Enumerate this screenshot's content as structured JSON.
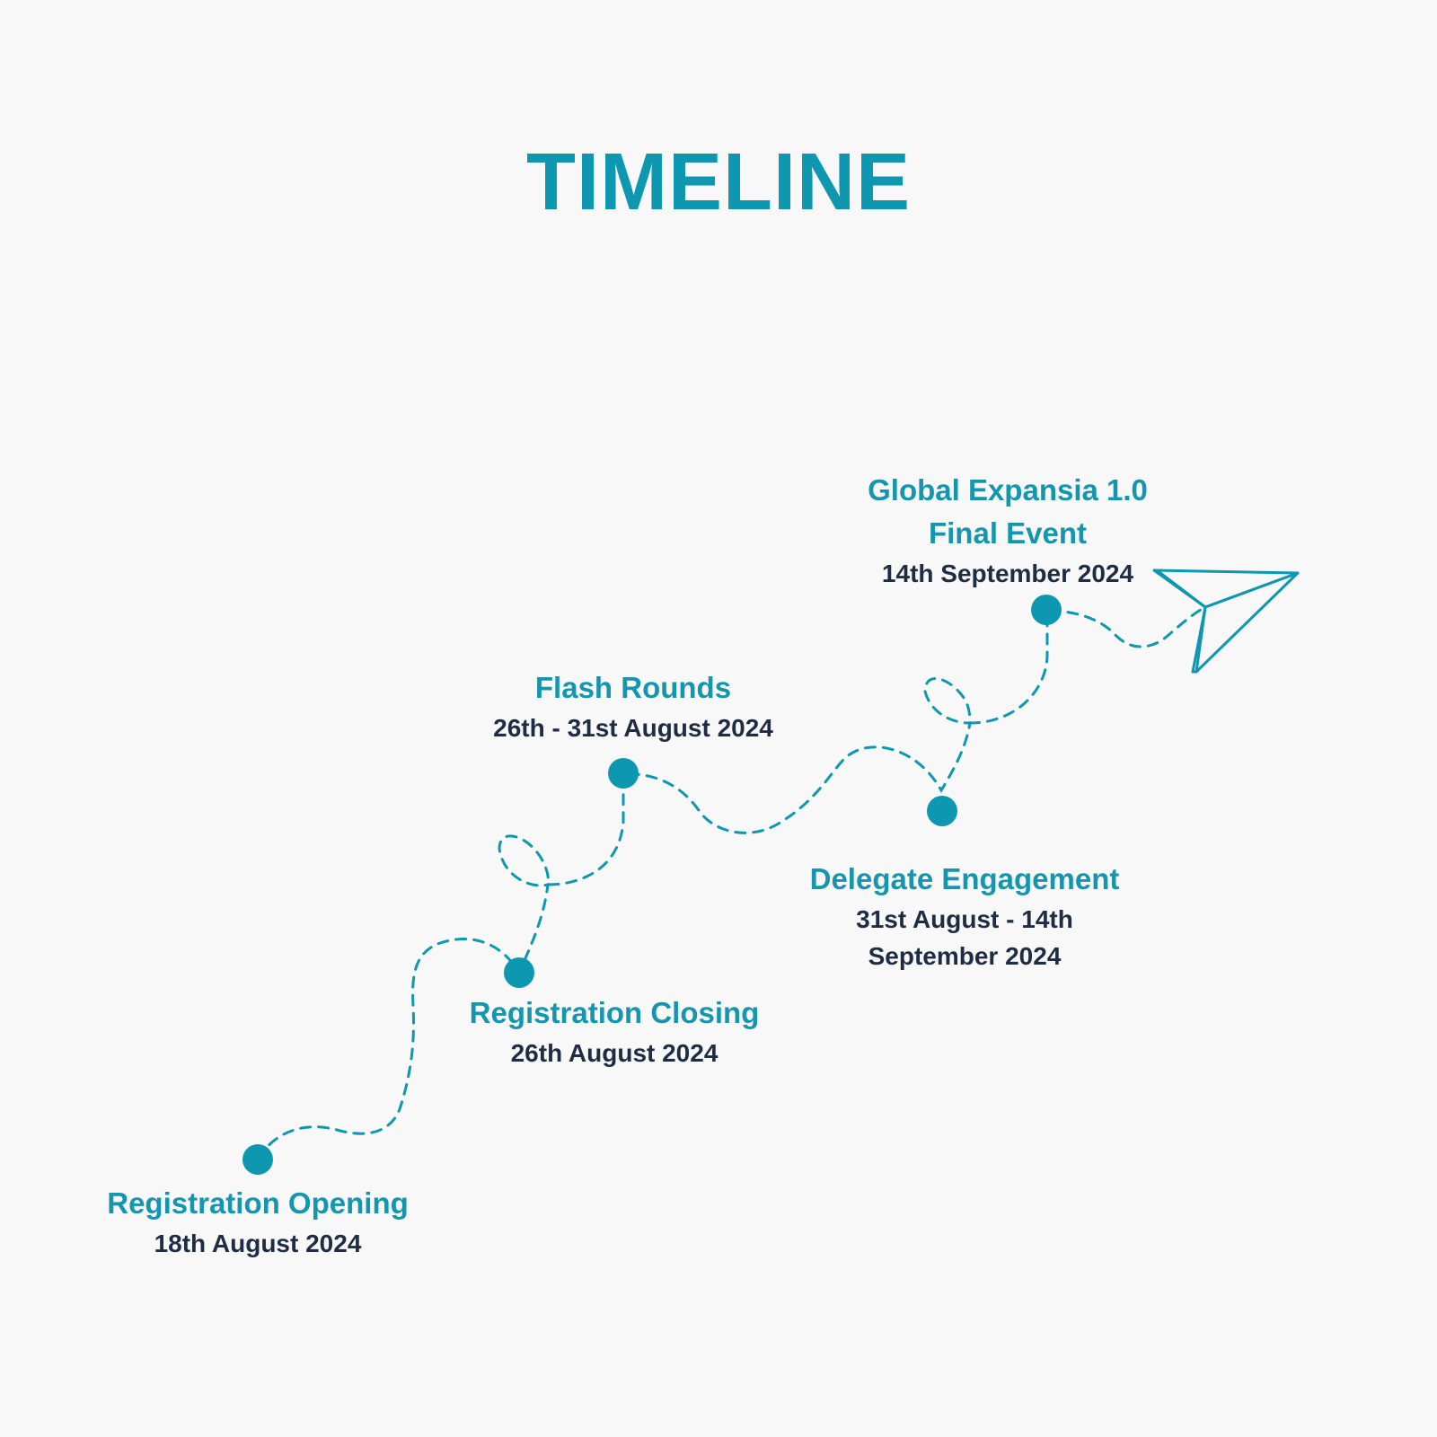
{
  "title": "TIMELINE",
  "colors": {
    "accent": "#0e97b0",
    "date_text": "#1f2d44",
    "background": "#f8f8f8"
  },
  "milestones": [
    {
      "title_lines": [
        "Registration Opening"
      ],
      "date_lines": [
        "18th  August 2024"
      ]
    },
    {
      "title_lines": [
        "Registration Closing"
      ],
      "date_lines": [
        "26th  August 2024"
      ]
    },
    {
      "title_lines": [
        "Flash Rounds"
      ],
      "date_lines": [
        "26th - 31st  August 2024"
      ]
    },
    {
      "title_lines": [
        "Delegate Engagement"
      ],
      "date_lines": [
        "31st August - 14th",
        "September 2024"
      ]
    },
    {
      "title_lines": [
        "Global Expansia 1.0",
        "Final Event"
      ],
      "date_lines": [
        "14th September 2024"
      ]
    }
  ],
  "icons": {
    "end_marker": "paper-plane-icon",
    "milestone_marker": "dot-icon"
  }
}
